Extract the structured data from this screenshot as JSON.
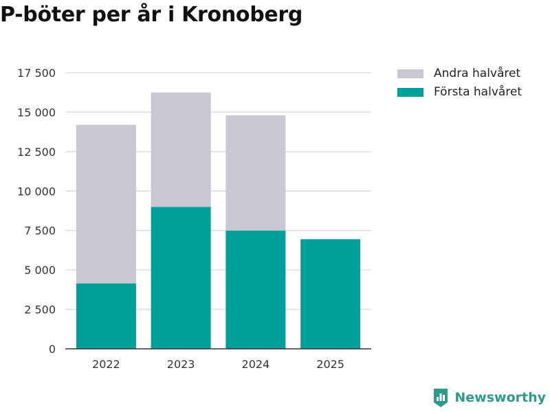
{
  "title": "P-böter per år i Kronoberg",
  "colors": {
    "first_half": "#00a09a",
    "second_half": "#c8c7d2",
    "grid": "#dddddd",
    "axis": "#333333",
    "text": "#333333",
    "brand": "#2c9b8e"
  },
  "brand": {
    "icon": "bar-chart-shield-icon",
    "label": "Newsworthy"
  },
  "chart_data": {
    "type": "bar",
    "stacked": true,
    "title": "P-böter per år i Kronoberg",
    "xlabel": "",
    "ylabel": "",
    "categories": [
      "2022",
      "2023",
      "2024",
      "2025"
    ],
    "series": [
      {
        "name": "Första halvåret",
        "values": [
          4150,
          9000,
          7500,
          6950
        ]
      },
      {
        "name": "Andra halvåret",
        "values": [
          10050,
          7250,
          7300,
          0
        ]
      }
    ],
    "ylim": [
      0,
      17500
    ],
    "yticks": [
      0,
      2500,
      5000,
      7500,
      10000,
      12500,
      15000,
      17500
    ],
    "ytick_labels": [
      "0",
      "2 500",
      "5 000",
      "7 500",
      "10 000",
      "12 500",
      "15 000",
      "17 500"
    ],
    "legend": {
      "placement": "top-right",
      "entries": [
        "Andra halvåret",
        "Första halvåret"
      ]
    },
    "grid": true
  }
}
